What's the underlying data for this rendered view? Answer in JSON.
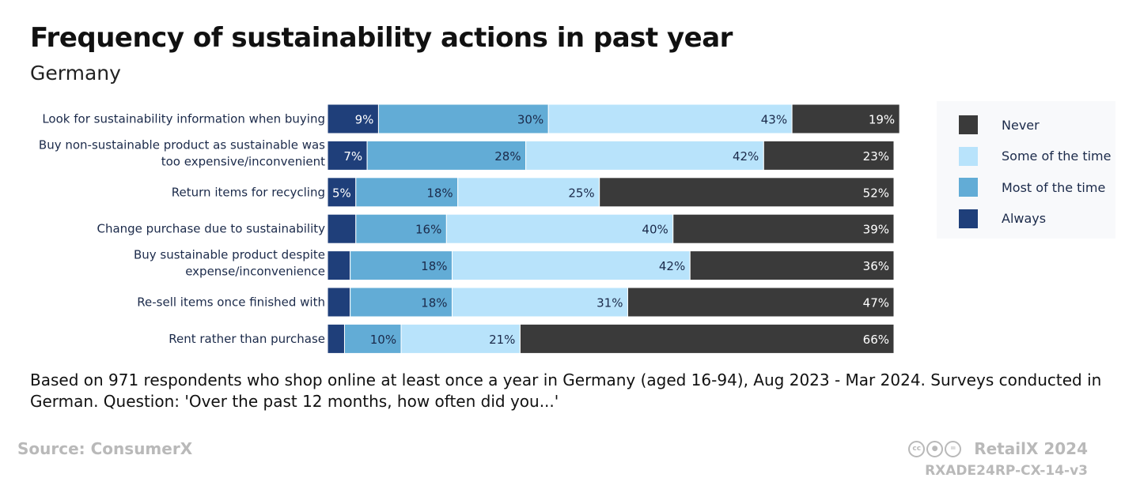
{
  "header": {
    "title": "Frequency of sustainability actions in past year",
    "subtitle": "Germany"
  },
  "chart_data": {
    "type": "bar",
    "orientation": "horizontal",
    "stacked": true,
    "title": "Frequency of sustainability actions in past year",
    "subtitle": "Germany",
    "categories": [
      "Look for sustainability information when buying",
      "Buy non-sustainable product as sustainable was too expensive/inconvenient",
      "Return items for recycling",
      "Change purchase due to sustainability",
      "Buy sustainable product despite expense/inconvenience",
      "Re-sell items once finished with",
      "Rent rather than purchase"
    ],
    "category_lines": [
      [
        "Look for sustainability information when buying"
      ],
      [
        "Buy non-sustainable product as sustainable was",
        "too expensive/inconvenient"
      ],
      [
        "Return items for recycling"
      ],
      [
        "Change purchase due to sustainability"
      ],
      [
        "Buy sustainable product despite",
        "expense/inconvenience"
      ],
      [
        "Re-sell items once finished with"
      ],
      [
        "Rent rather than purchase"
      ]
    ],
    "series": [
      {
        "name": "Always",
        "color": "#1f3f7a",
        "text_color": "#ffffff",
        "values": [
          9,
          7,
          5,
          5,
          4,
          4,
          3
        ],
        "labels": [
          "9%",
          "7%",
          "5%",
          "",
          "",
          "",
          ""
        ]
      },
      {
        "name": "Most of the time",
        "color": "#62acd6",
        "text_color": "#1b2a4a",
        "values": [
          30,
          28,
          18,
          16,
          18,
          18,
          10
        ],
        "labels": [
          "30%",
          "28%",
          "18%",
          "16%",
          "18%",
          "18%",
          "10%"
        ]
      },
      {
        "name": "Some of the time",
        "color": "#b8e3fb",
        "text_color": "#1b2a4a",
        "values": [
          43,
          42,
          25,
          40,
          42,
          31,
          21
        ],
        "labels": [
          "43%",
          "42%",
          "25%",
          "40%",
          "42%",
          "31%",
          "21%"
        ]
      },
      {
        "name": "Never",
        "color": "#3a3a3a",
        "text_color": "#ffffff",
        "values": [
          19,
          23,
          52,
          39,
          36,
          47,
          66
        ],
        "labels": [
          "19%",
          "23%",
          "52%",
          "39%",
          "36%",
          "47%",
          "66%"
        ]
      }
    ],
    "xlim": [
      0,
      100
    ],
    "grid": false,
    "legend_position": "right",
    "legend_order": [
      "Never",
      "Some of the time",
      "Most of the time",
      "Always"
    ]
  },
  "footer": {
    "note": "Based on 971 respondents who shop online at least once a year in Germany (aged 16-94), Aug 2023 - Mar 2024. Surveys conducted in German. Question: 'Over the past 12 months, how often did you...'",
    "source": "Source: ConsumerX",
    "brand": "RetailX 2024",
    "code": "RXADE24RP-CX-14-v3",
    "license_icons": [
      "cc-icon",
      "by-icon",
      "nd-icon"
    ]
  }
}
